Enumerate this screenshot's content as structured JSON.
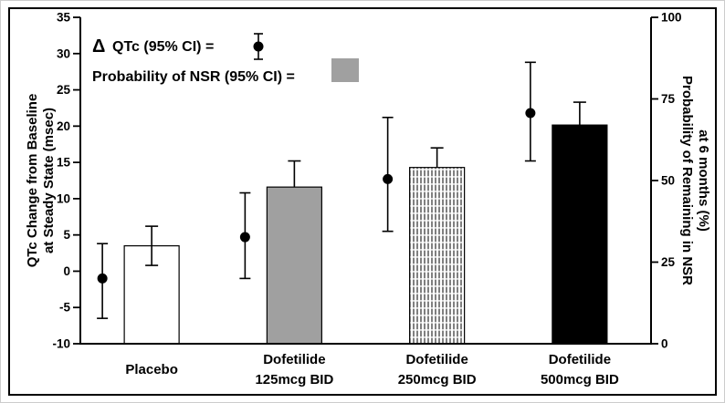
{
  "chart_data": {
    "type": "combo-bar-point",
    "title": "",
    "categories": [
      [
        "Placebo"
      ],
      [
        "Dofetilide",
        "125mcg BID"
      ],
      [
        "Dofetilide",
        "250mcg BID"
      ],
      [
        "Dofetilide",
        "500mcg BID"
      ]
    ],
    "left_axis": {
      "label_lines": [
        "QTc Change from Baseline",
        "at Steady State (msec)"
      ],
      "min": -10,
      "max": 35,
      "tick_step": 5
    },
    "right_axis": {
      "label_lines": [
        "Probability of Remaining in NSR",
        "at  6 months (%)"
      ],
      "min": 0,
      "max": 100,
      "tick_step": 25
    },
    "series": [
      {
        "name": "Δ QTc (95% CI)",
        "type": "point",
        "axis": "left",
        "marker": "black-dot-with-error-bar",
        "values": [
          -1,
          4.7,
          12.7,
          21.8
        ],
        "ci": [
          [
            -6.5,
            3.8
          ],
          [
            -1,
            10.8
          ],
          [
            5.5,
            21.2
          ],
          [
            15.2,
            28.8
          ]
        ]
      },
      {
        "name": "Probability of NSR (95% CI)",
        "type": "bar",
        "axis": "right",
        "values": [
          30,
          48,
          54,
          67
        ],
        "ci_high": [
          36,
          56,
          60,
          74
        ],
        "ci_low": [
          24,
          null,
          null,
          null
        ],
        "fills": [
          "white",
          "gray",
          "hatch",
          "black"
        ]
      }
    ],
    "legend": {
      "delta": "Δ",
      "qtc_label": "QTc (95% CI) = ",
      "nsr_label": "Probability of NSR (95% CI) =",
      "qtc_marker": "black-dot-with-error-bar",
      "nsr_marker": "gray-square"
    },
    "colors": {
      "bar_gray": "#a0a0a0",
      "ink": "#000000",
      "background": "#ffffff"
    }
  }
}
